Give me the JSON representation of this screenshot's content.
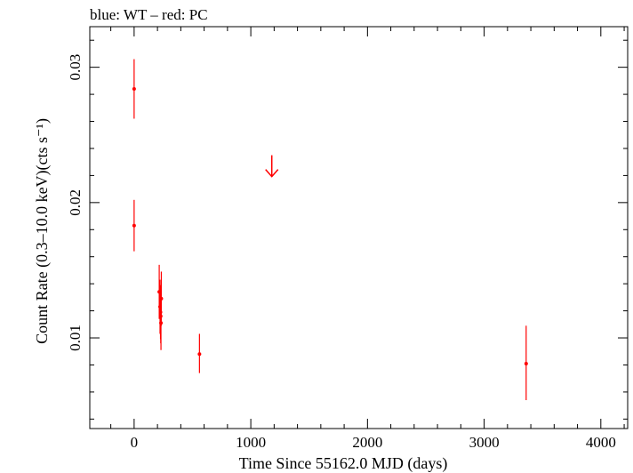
{
  "chart_data": {
    "type": "scatter",
    "title": "blue: WT – red: PC",
    "xlabel": "Time Since 55162.0 MJD (days)",
    "ylabel": "Count Rate (0.3–10.0 keV)(cts s⁻¹)",
    "xlim": [
      -380,
      4230
    ],
    "ylim": [
      0.0033,
      0.033
    ],
    "x_ticks": [
      {
        "value": 0,
        "label": "0"
      },
      {
        "value": 1000,
        "label": "1000"
      },
      {
        "value": 2000,
        "label": "2000"
      },
      {
        "value": 3000,
        "label": "3000"
      },
      {
        "value": 4000,
        "label": "4000"
      }
    ],
    "y_ticks": [
      {
        "value": 0.01,
        "label": "0.01"
      },
      {
        "value": 0.02,
        "label": "0.02"
      },
      {
        "value": 0.03,
        "label": "0.03"
      }
    ],
    "grid": false,
    "series": [
      {
        "color": "#ff0000",
        "points": [
          {
            "x": 0,
            "y": 0.0284,
            "ylo": 0.0262,
            "yhi": 0.0306
          },
          {
            "x": 0,
            "y": 0.0183,
            "ylo": 0.0164,
            "yhi": 0.0202
          },
          {
            "x": 215,
            "y": 0.0134,
            "ylo": 0.0114,
            "yhi": 0.0154
          },
          {
            "x": 222,
            "y": 0.0123,
            "ylo": 0.0103,
            "yhi": 0.0143
          },
          {
            "x": 226,
            "y": 0.0119,
            "ylo": 0.0099,
            "yhi": 0.0139
          },
          {
            "x": 228,
            "y": 0.0116,
            "ylo": 0.0096,
            "yhi": 0.0136
          },
          {
            "x": 230,
            "y": 0.0111,
            "ylo": 0.0091,
            "yhi": 0.0131
          },
          {
            "x": 233,
            "y": 0.0129,
            "ylo": 0.0109,
            "yhi": 0.0149
          },
          {
            "x": 560,
            "y": 0.0088,
            "ylo": 0.0074,
            "yhi": 0.0103
          },
          {
            "x": 3360,
            "y": 0.0081,
            "ylo": 0.0054,
            "yhi": 0.0109
          }
        ],
        "upper_limits": [
          {
            "x": 1180,
            "y": 0.0235
          }
        ]
      }
    ]
  }
}
